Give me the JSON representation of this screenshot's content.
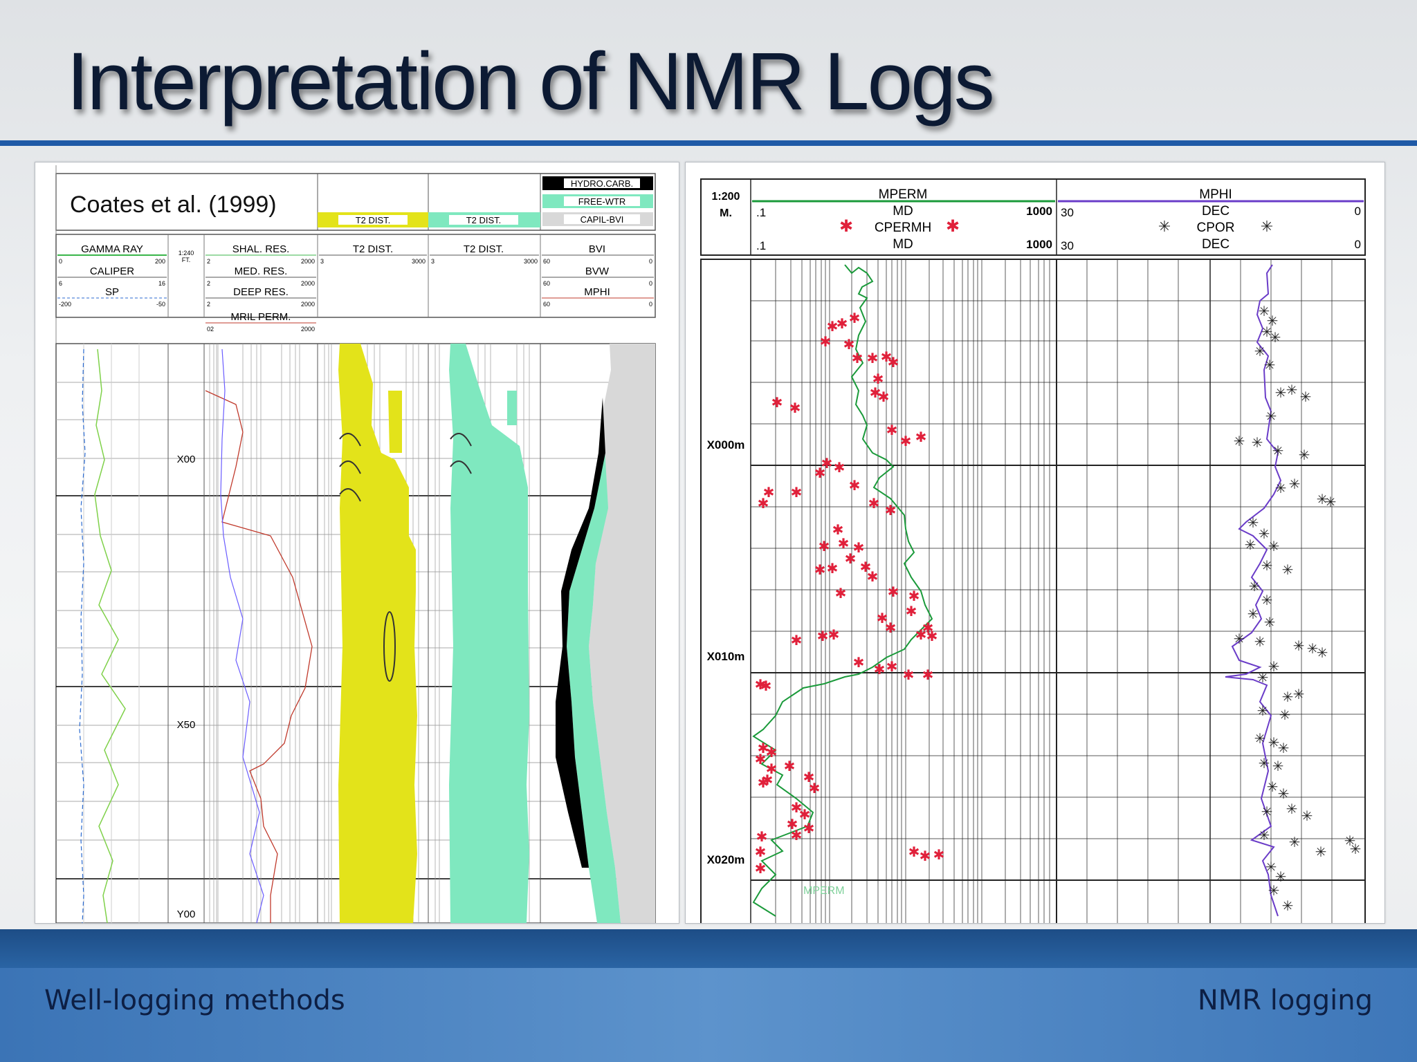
{
  "slide": {
    "title": "Interpretation of NMR Logs",
    "footer_left": "Well-logging methods",
    "footer_right": "NMR logging"
  },
  "left_log": {
    "citation": "Coates et al. (1999)",
    "legend_hydrocarb": "HYDRO.CARB.",
    "legend_free_water": "FREE-WTR",
    "legend_capil_bvi": "CAPIL-BVI",
    "legend_t2_dist_1": "T2 DIST.",
    "legend_t2_dist_2": "T2 DIST.",
    "track1_gamma": "GAMMA RAY",
    "track1_caliper": "CALIPER",
    "track1_sp": "SP",
    "gamma_min": "0",
    "gamma_max": "200",
    "caliper_min": "6",
    "caliper_max": "16",
    "sp_min": "-200",
    "sp_max": "-50",
    "depth_scale_1": "1:240",
    "depth_scale_2": "FT.",
    "res_shal": "SHAL. RES.",
    "res_med": "MED. RES.",
    "res_deep": "DEEP RES.",
    "res_mril": "MRIL PERM.",
    "res_min_1": "2",
    "res_max_1": "2000",
    "res_min_2": "2",
    "res_max_2": "2000",
    "res_min_3": "2",
    "res_max_3": "2000",
    "res_min_4": "02",
    "res_max_4": "2000",
    "t2_title_1": "T2 DIST.",
    "t2_min_1": "3",
    "t2_max_1": "3000",
    "t2_title_2": "T2 DIST.",
    "t2_min_2": "3",
    "t2_max_2": "3000",
    "bvi": "BVI",
    "bvw": "BVW",
    "mphi": "MPHI",
    "bvi_min": "60",
    "bvi_max": "0",
    "bvw_min": "60",
    "bvw_max": "0",
    "mphi_min": "60",
    "mphi_max": "0",
    "depth_x00": "X00",
    "depth_x50": "X50",
    "depth_y00": "Y00",
    "colors": {
      "t2_yellow": "#e3e31a",
      "t2_green": "#7fe8bf",
      "hydrocarbon": "#000000"
    }
  },
  "right_log": {
    "scale_1": "1:200",
    "scale_2": "M.",
    "mperm": "MPERM",
    "md_1": "MD",
    "md_min_1": ".1",
    "md_max_1": "1000",
    "cpermh": "CPERMH",
    "md_2": "MD",
    "md_min_2": ".1",
    "md_max_2": "1000",
    "mphi": "MPHI",
    "dec_1": "DEC",
    "dec_min_1": "30",
    "dec_max_1": "0",
    "cpor": "CPOR",
    "dec_2": "DEC",
    "dec_min_2": "30",
    "dec_max_2": "0",
    "depth_x000": "X000m",
    "depth_x010": "X010m",
    "depth_x020": "X020m",
    "curve_label": "MPERM",
    "colors": {
      "mperm": "#1a9a3a",
      "cpermh": "#e0203a",
      "mphi": "#6a3cc8",
      "cpor": "#222222"
    }
  }
}
